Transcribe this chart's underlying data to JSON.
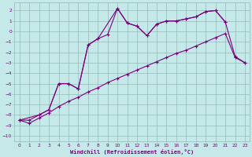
{
  "xlabel": "Windchill (Refroidissement éolien,°C)",
  "xlim": [
    -0.5,
    23.5
  ],
  "ylim": [
    -10.5,
    2.8
  ],
  "bg_color": "#c5e8e8",
  "grid_color": "#93baba",
  "line_color": "#7b007b",
  "xticks": [
    0,
    1,
    2,
    3,
    4,
    5,
    6,
    7,
    8,
    9,
    10,
    11,
    12,
    13,
    14,
    15,
    16,
    17,
    18,
    19,
    20,
    21,
    22,
    23
  ],
  "yticks": [
    2,
    1,
    0,
    -1,
    -2,
    -3,
    -4,
    -5,
    -6,
    -7,
    -8,
    -9,
    -10
  ],
  "line1_x": [
    0,
    1,
    2,
    3,
    4,
    5,
    6,
    7,
    8,
    10,
    11,
    12,
    13,
    14,
    15,
    16,
    17,
    18,
    19,
    20,
    21
  ],
  "line1_y": [
    -8.5,
    -8.5,
    -8.0,
    -7.5,
    -5.0,
    -5.0,
    -5.5,
    -1.3,
    -0.7,
    2.2,
    0.8,
    0.5,
    -0.4,
    0.7,
    1.0,
    1.0,
    1.2,
    1.4,
    1.9,
    2.0,
    0.9
  ],
  "line2_x": [
    0,
    1,
    2,
    3,
    4,
    5,
    6,
    7,
    8,
    9,
    10,
    11,
    12,
    13,
    14,
    15,
    16,
    17,
    18,
    19,
    20,
    21,
    22,
    23
  ],
  "line2_y": [
    -8.5,
    -8.8,
    -8.3,
    -7.8,
    -7.2,
    -6.7,
    -6.3,
    -5.8,
    -5.4,
    -4.9,
    -4.5,
    -4.1,
    -3.7,
    -3.3,
    -2.9,
    -2.5,
    -2.1,
    -1.8,
    -1.4,
    -1.0,
    -0.6,
    -0.2,
    -2.5,
    -3.0
  ],
  "line3_x": [
    0,
    2,
    3,
    4,
    5,
    6,
    7,
    8,
    9,
    10,
    11,
    12,
    13,
    14,
    15,
    16,
    17,
    18,
    19,
    20,
    21,
    22,
    23
  ],
  "line3_y": [
    -8.5,
    -8.0,
    -7.5,
    -5.0,
    -5.0,
    -5.5,
    -1.3,
    -0.7,
    -0.3,
    2.2,
    0.8,
    0.5,
    -0.4,
    0.7,
    1.0,
    1.0,
    1.2,
    1.4,
    1.9,
    2.0,
    0.9,
    -2.4,
    -3.0
  ]
}
